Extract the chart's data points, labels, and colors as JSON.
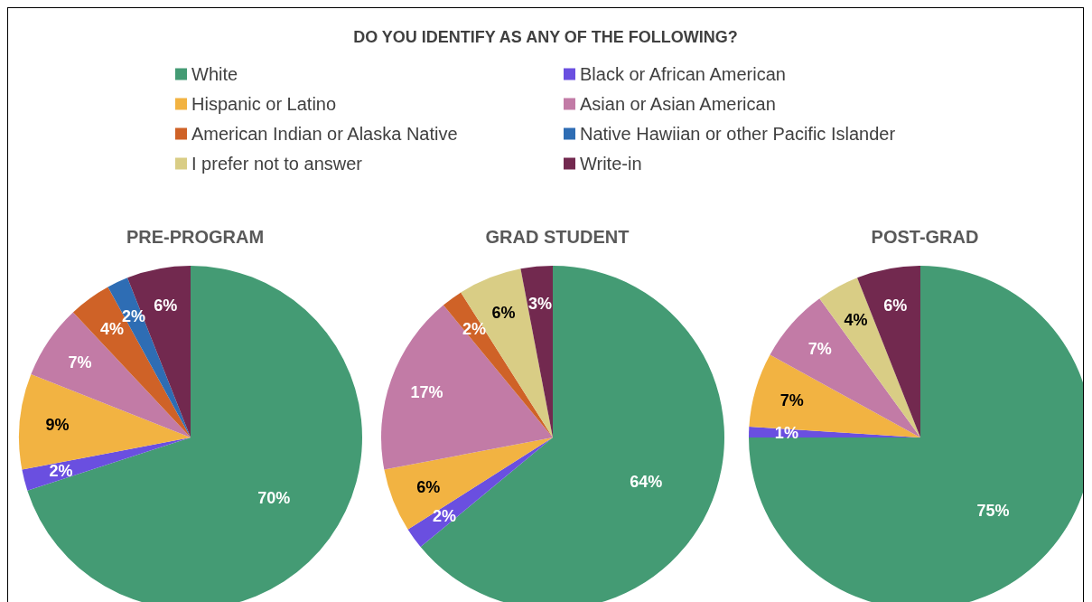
{
  "chart_data": {
    "type": "pie",
    "title": "DO YOU IDENTIFY AS ANY OF THE FOLLOWING?",
    "legend": "top",
    "categories": [
      "White",
      "Black or African American",
      "Hispanic or Latino",
      "Asian or Asian American",
      "American Indian or Alaska Native",
      "Native Hawiian or other Pacific Islander",
      "I prefer not to answer",
      "Write-in"
    ],
    "colors": [
      "#449b74",
      "#6a4fe0",
      "#f2b342",
      "#c27ba6",
      "#cf6227",
      "#2e6db4",
      "#d9cd85",
      "#72294f"
    ],
    "series": [
      {
        "name": "PRE-PROGRAM",
        "values": [
          70,
          2,
          9,
          7,
          4,
          2,
          0,
          6
        ],
        "value_labels": [
          "70%",
          "2%",
          "9%",
          "7%",
          "4%",
          "2%",
          null,
          "6%"
        ]
      },
      {
        "name": "GRAD STUDENT",
        "values": [
          64,
          2,
          6,
          17,
          2,
          0,
          6,
          3
        ],
        "value_labels": [
          "64%",
          "2%",
          "6%",
          "17%",
          "2%",
          null,
          "6%",
          "3%"
        ]
      },
      {
        "name": "POST-GRAD",
        "values": [
          75,
          1,
          7,
          7,
          0,
          0,
          4,
          6
        ],
        "value_labels": [
          "75%",
          "1%",
          "7%",
          "7%",
          null,
          null,
          "4%",
          "6%"
        ]
      }
    ]
  }
}
